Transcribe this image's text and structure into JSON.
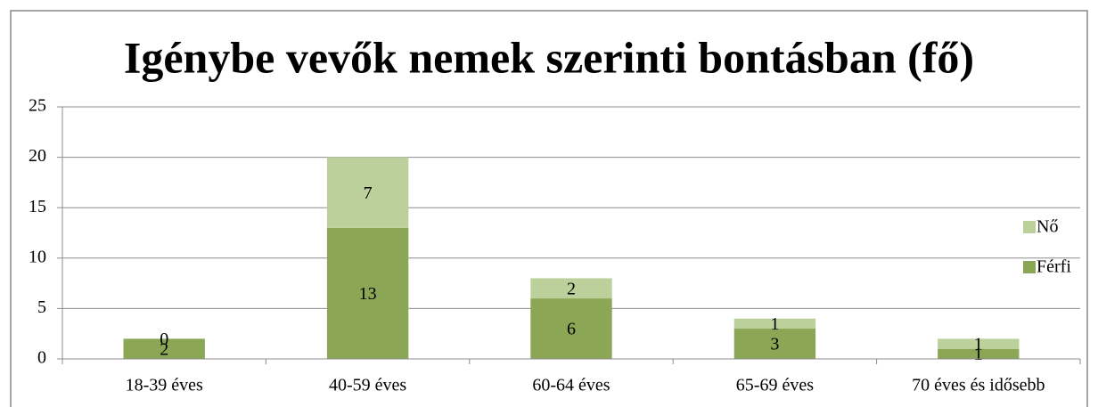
{
  "chart_data": {
    "type": "stacked_bar",
    "title": "Igénybe vevők nemek szerinti bontásban (fő)",
    "categories": [
      "18-39 éves",
      "40-59 éves",
      "60-64 éves",
      "65-69 éves",
      "70 éves és idősebb"
    ],
    "series": [
      {
        "name": "Férfi",
        "color": "#8ba654",
        "values": [
          2,
          13,
          6,
          3,
          1
        ]
      },
      {
        "name": "Nő",
        "color": "#bcd09c",
        "values": [
          0,
          7,
          2,
          1,
          1
        ]
      }
    ],
    "ylim": [
      0,
      25
    ],
    "yticks": [
      0,
      5,
      10,
      15,
      20,
      25
    ],
    "grid": true,
    "legend": "right"
  }
}
